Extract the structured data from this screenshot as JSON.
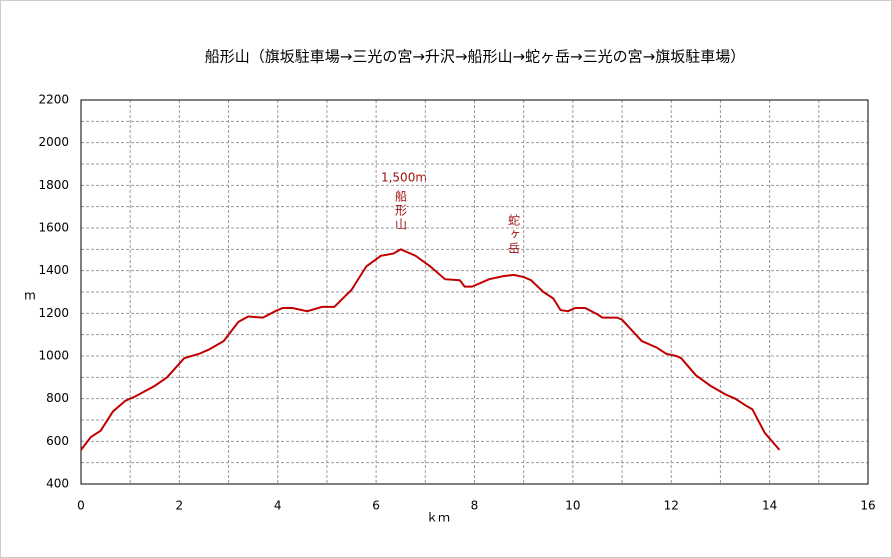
{
  "chart_data": {
    "type": "line",
    "title": "船形山（旗坂駐車場→三光の宮→升沢→船形山→蛇ヶ岳→三光の宮→旗坂駐車場）",
    "x_label": "ｋｍ",
    "y_label": "m",
    "annotations": [
      "1,500m",
      "船形山",
      "蛇ヶ岳"
    ],
    "x": [
      0,
      0.2,
      0.4,
      0.65,
      0.9,
      1.1,
      1.5,
      1.75,
      2.1,
      2.4,
      2.6,
      2.9,
      3.2,
      3.4,
      3.7,
      3.95,
      4.1,
      4.3,
      4.6,
      4.9,
      5.15,
      5.5,
      5.8,
      6.1,
      6.35,
      6.5,
      6.8,
      7.1,
      7.4,
      7.7,
      7.8,
      7.95,
      8.3,
      8.6,
      8.8,
      9.0,
      9.15,
      9.4,
      9.6,
      9.75,
      9.9,
      10.05,
      10.25,
      10.5,
      10.6,
      10.9,
      11.0,
      11.4,
      11.7,
      11.9,
      12.1,
      12.2,
      12.5,
      12.8,
      13.1,
      13.3,
      13.5,
      13.65,
      13.9,
      14.2
    ],
    "series": [
      {
        "color": "#c00000",
        "values": [
          560,
          620,
          650,
          740,
          790,
          810,
          860,
          900,
          990,
          1010,
          1030,
          1070,
          1160,
          1185,
          1180,
          1210,
          1225,
          1225,
          1210,
          1230,
          1230,
          1310,
          1420,
          1470,
          1480,
          1500,
          1470,
          1420,
          1360,
          1355,
          1325,
          1325,
          1360,
          1375,
          1380,
          1370,
          1355,
          1300,
          1270,
          1215,
          1210,
          1225,
          1225,
          1195,
          1180,
          1180,
          1170,
          1070,
          1040,
          1010,
          1000,
          990,
          910,
          860,
          820,
          800,
          770,
          750,
          640,
          560
        ]
      }
    ],
    "xlim": [
      0,
      16
    ],
    "xticks": [
      0,
      2,
      4,
      6,
      8,
      10,
      12,
      14,
      16
    ],
    "ylim": [
      400,
      2200
    ],
    "yticks": [
      400,
      600,
      800,
      1000,
      1200,
      1400,
      1600,
      1800,
      2000,
      2200
    ],
    "grid": true
  }
}
